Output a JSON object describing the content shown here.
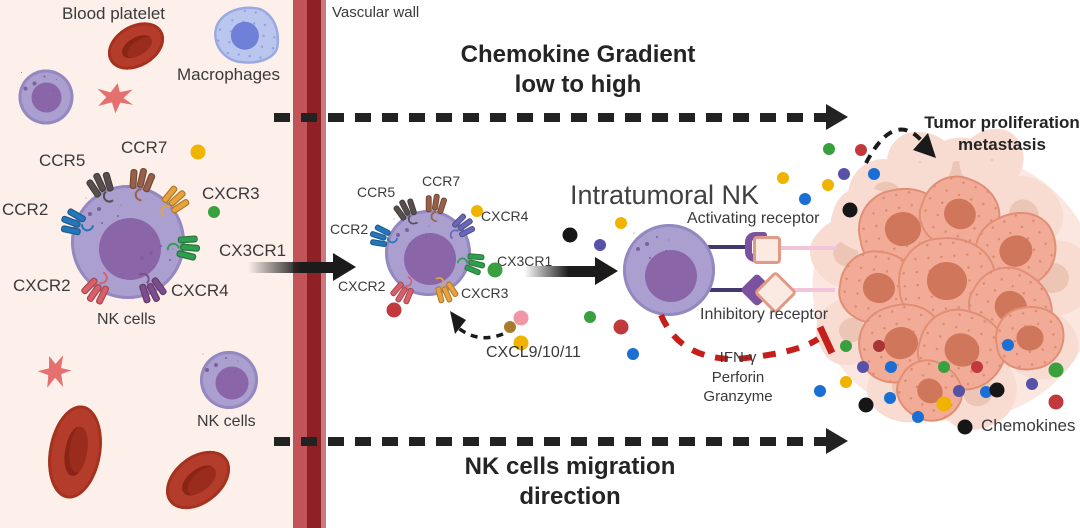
{
  "labels": {
    "blood_platelet": "Blood platelet",
    "macrophages": "Macrophages",
    "vascular_wall": "Vascular wall",
    "nk_cells": "NK cells",
    "chemokine_gradient": "Chemokine Gradient",
    "low_to_high": "low to high",
    "intratumoral_nk": "Intratumoral NK",
    "activating_receptor": "Activating receptor",
    "inhibitory_receptor": "Inhibitory receptor",
    "cxcl": "CXCL9/10/11",
    "ifn_gamma": "IFN-γ",
    "perforin": "Perforin",
    "granzyme": "Granzyme",
    "tumor_proliferation": "Tumor proliferation",
    "metastasis": "metastasis",
    "chemokines": "Chemokines",
    "nk_migration": "NK cells migration",
    "direction": "direction"
  },
  "cells": {
    "blood_nk": {
      "label": "NK cells",
      "receptors": [
        {
          "name": "CCR5",
          "color": "#55504f"
        },
        {
          "name": "CCR7",
          "color": "#96604a"
        },
        {
          "name": "CXCR3",
          "color": "#e6a33c"
        },
        {
          "name": "CX3CR1",
          "color": "#2f9e4e"
        },
        {
          "name": "CCR2",
          "color": "#2277bb"
        },
        {
          "name": "CXCR2",
          "color": "#d9606a"
        },
        {
          "name": "CXCR4",
          "color": "#7c4e8e"
        }
      ]
    },
    "transmigrating_nk": {
      "receptors": [
        {
          "name": "CCR5",
          "color": "#55504f"
        },
        {
          "name": "CCR7",
          "color": "#96604a"
        },
        {
          "name": "CXCR4",
          "color": "#6668bb"
        },
        {
          "name": "CCR2",
          "color": "#2277bb"
        },
        {
          "name": "CX3CR1",
          "color": "#2f9e4e"
        },
        {
          "name": "CXCR2",
          "color": "#d9606a"
        },
        {
          "name": "CXCR3",
          "color": "#e6a33c"
        }
      ]
    }
  },
  "wall": {
    "outer": "#c05459",
    "core": "#8e2026",
    "inner_edge": "#c97a7e"
  },
  "palette": {
    "yellow": "#f0b400",
    "green": "#3aa03f",
    "red": "#c2393d",
    "blue": "#1a6fd4",
    "purple": "#5751a8",
    "black": "#161616",
    "pink": "#f096a4",
    "brown": "#a87b2f",
    "dark_red": "#a83434"
  },
  "colors": {
    "vessel_bg": "#fdf0ea",
    "nk_body": "#ab9fd0",
    "nk_nucleus": "#8a66a8",
    "macrophage_body": "#bac6ee",
    "rbc": "#b43c2b",
    "platelet": "#e4716f",
    "tumor_cell": "#f2ab96",
    "tumor_nucleus": "#d0765a",
    "activating_purple": "#7a52a0",
    "ligand_fill": "#fbeae1",
    "inhibition_red": "#c41f1a",
    "arrow_black": "#1b1b1b"
  }
}
